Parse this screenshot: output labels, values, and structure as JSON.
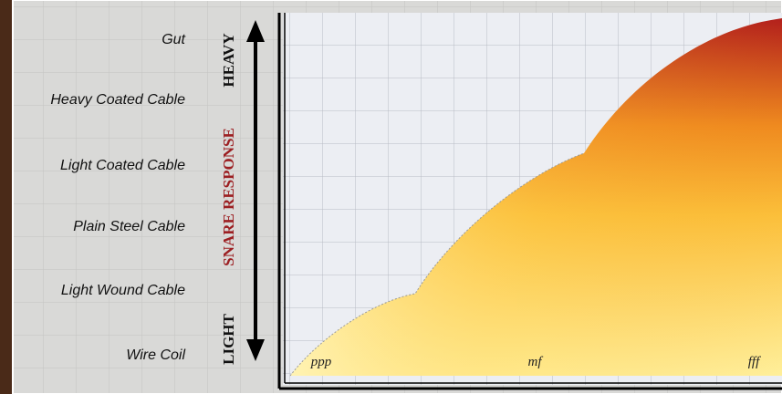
{
  "levels": [
    "Gut",
    "Heavy Coated Cable",
    "Light Coated Cable",
    "Plain Steel Cable",
    "Light Wound Cable",
    "Wire Coil"
  ],
  "axis": {
    "top": "HEAVY",
    "title": "SNARE RESPONSE",
    "bottom": "LIGHT"
  },
  "dynamics": [
    "ppp",
    "mf",
    "fff"
  ]
}
